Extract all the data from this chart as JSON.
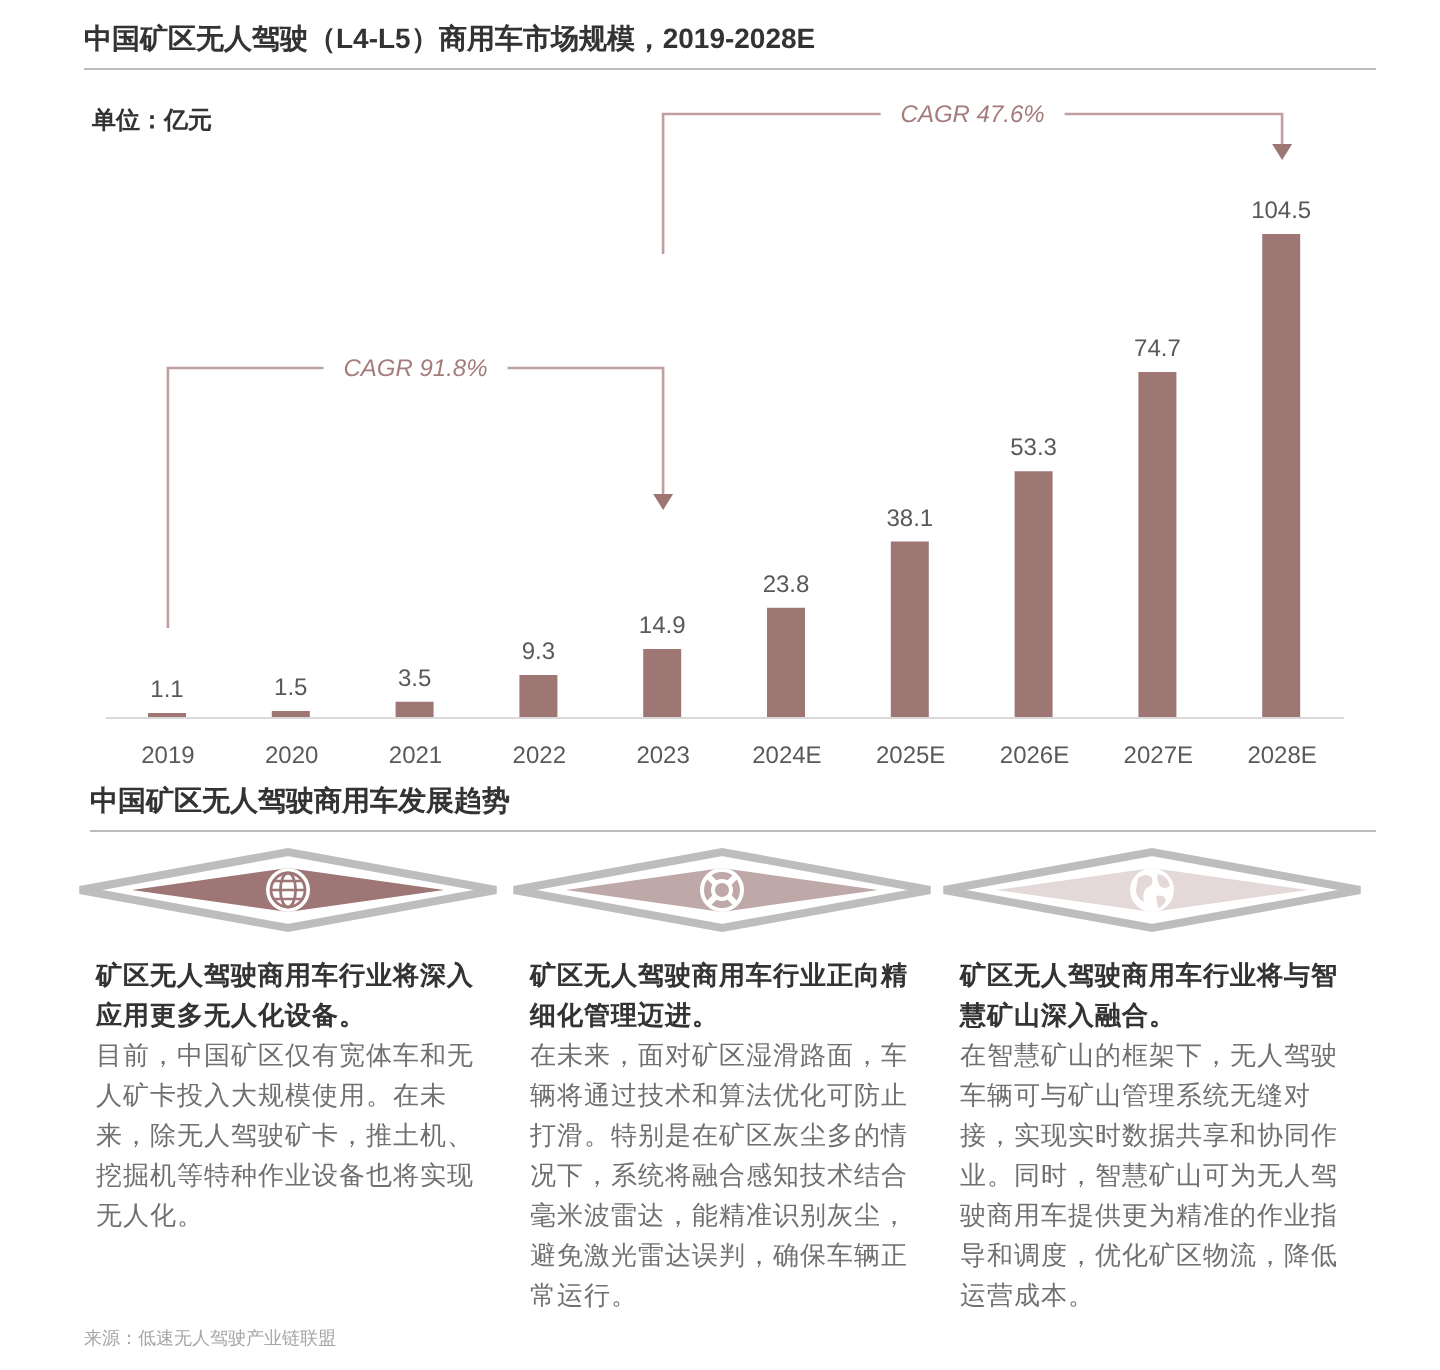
{
  "chart_data": [
    {
      "type": "bar",
      "title": "中国矿区无人驾驶（L4-L5）商用车市场规模，2019-2028E",
      "ylabel": "单位：亿元",
      "categories": [
        "2019",
        "2020",
        "2021",
        "2022",
        "2023",
        "2024E",
        "2025E",
        "2026E",
        "2027E",
        "2028E"
      ],
      "values": [
        1.1,
        1.5,
        3.5,
        9.3,
        14.9,
        23.8,
        38.1,
        53.3,
        74.7,
        104.5
      ],
      "color": "#9e7775",
      "data_labels": true,
      "tick_labels": "x",
      "annotations": [
        "CAGR 91.8%",
        "CAGR 47.6%"
      ]
    },
    {
      "type": "other",
      "title": "中国矿区无人驾驶商用车发展趋势",
      "annotations": [
        "矿区无人驾驶商用车行业将深入应用更多无人化设备。",
        "目前，中国矿区仅有宽体车和无人矿卡投入大规模使用。在未来，除无人驾驶矿卡，推土机、挖掘机等特种作业设备也将实现无人化。",
        "矿区无人驾驶商用车行业正向精细化管理迈进。",
        "在未来，面对矿区湿滑路面，车辆将通过技术和算法优化可防止打滑。特别是在矿区灰尘多的情况下，系统将融合感知技术结合毫米波雷达，能精准识别灰尘，避免激光雷达误判，确保车辆正常运行。",
        "矿区无人驾驶商用车行业将与智慧矿山深入融合。",
        "在智慧矿山的框架下，无人驾驶车辆可与矿山管理系统无缝对接，实现实时数据共享和协同作业。同时，智慧矿山可为无人驾驶商用车提供更为精准的作业指导和调度，优化矿区物流，降低运营成本。",
        "来源：低速无人驾驶产业链联盟"
      ]
    }
  ]
}
